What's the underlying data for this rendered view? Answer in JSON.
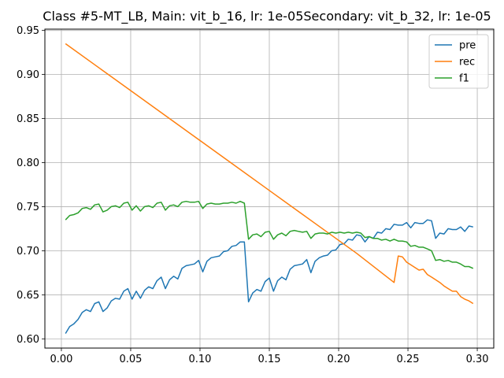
{
  "chart_data": {
    "type": "line",
    "title": "Class #5-MT_LB, Main: vit_b_16, lr: 1e-05Secondary: vit_b_32, lr: 1e-05",
    "xlabel": "",
    "ylabel": "",
    "xlim": [
      -0.0119,
      0.3119
    ],
    "ylim": [
      0.5895,
      0.9515
    ],
    "xticks": [
      "0.00",
      "0.05",
      "0.10",
      "0.15",
      "0.20",
      "0.25",
      "0.30"
    ],
    "xtick_values": [
      0.0,
      0.05,
      0.1,
      0.15,
      0.2,
      0.25,
      0.3
    ],
    "yticks": [
      "0.60",
      "0.65",
      "0.70",
      "0.75",
      "0.80",
      "0.85",
      "0.90",
      "0.95"
    ],
    "ytick_values": [
      0.6,
      0.65,
      0.7,
      0.75,
      0.8,
      0.85,
      0.9,
      0.95
    ],
    "grid": true,
    "legend_position": "top-right",
    "series": [
      {
        "name": "pre",
        "color": "#1f77b4",
        "x": [
          0.003,
          0.006,
          0.009,
          0.012,
          0.015,
          0.018,
          0.021,
          0.024,
          0.027,
          0.03,
          0.033,
          0.036,
          0.039,
          0.042,
          0.045,
          0.048,
          0.051,
          0.054,
          0.057,
          0.06,
          0.063,
          0.066,
          0.069,
          0.072,
          0.075,
          0.078,
          0.081,
          0.084,
          0.087,
          0.09,
          0.093,
          0.096,
          0.099,
          0.102,
          0.105,
          0.108,
          0.111,
          0.114,
          0.117,
          0.12,
          0.123,
          0.126,
          0.129,
          0.132,
          0.135,
          0.138,
          0.141,
          0.144,
          0.147,
          0.15,
          0.153,
          0.156,
          0.159,
          0.162,
          0.165,
          0.168,
          0.171,
          0.174,
          0.177,
          0.18,
          0.183,
          0.186,
          0.189,
          0.192,
          0.195,
          0.198,
          0.201,
          0.204,
          0.207,
          0.21,
          0.213,
          0.216,
          0.219,
          0.222,
          0.225,
          0.228,
          0.231,
          0.234,
          0.237,
          0.24,
          0.243,
          0.246,
          0.249,
          0.252,
          0.255,
          0.258,
          0.261,
          0.264,
          0.267,
          0.27,
          0.273,
          0.276,
          0.279,
          0.282,
          0.285,
          0.288,
          0.291,
          0.294,
          0.297
        ],
        "y": [
          0.606,
          0.614,
          0.617,
          0.622,
          0.63,
          0.633,
          0.631,
          0.64,
          0.642,
          0.631,
          0.635,
          0.643,
          0.646,
          0.645,
          0.654,
          0.657,
          0.645,
          0.654,
          0.646,
          0.655,
          0.659,
          0.657,
          0.666,
          0.67,
          0.657,
          0.667,
          0.671,
          0.668,
          0.68,
          0.683,
          0.684,
          0.685,
          0.689,
          0.676,
          0.688,
          0.692,
          0.693,
          0.694,
          0.699,
          0.7,
          0.705,
          0.706,
          0.71,
          0.71,
          0.642,
          0.652,
          0.656,
          0.654,
          0.665,
          0.669,
          0.654,
          0.666,
          0.67,
          0.667,
          0.679,
          0.683,
          0.684,
          0.685,
          0.69,
          0.675,
          0.688,
          0.692,
          0.694,
          0.695,
          0.7,
          0.701,
          0.707,
          0.708,
          0.713,
          0.712,
          0.718,
          0.717,
          0.71,
          0.716,
          0.714,
          0.721,
          0.72,
          0.725,
          0.724,
          0.73,
          0.729,
          0.729,
          0.732,
          0.726,
          0.732,
          0.731,
          0.731,
          0.735,
          0.734,
          0.714,
          0.72,
          0.719,
          0.725,
          0.724,
          0.724,
          0.727,
          0.722,
          0.728,
          0.727
        ]
      },
      {
        "name": "rec",
        "color": "#ff7f0e",
        "x": [
          0.003,
          0.033,
          0.063,
          0.093,
          0.123,
          0.153,
          0.183,
          0.213,
          0.24,
          0.243,
          0.246,
          0.249,
          0.252,
          0.255,
          0.258,
          0.261,
          0.264,
          0.267,
          0.27,
          0.273,
          0.276,
          0.279,
          0.282,
          0.285,
          0.288,
          0.291,
          0.294,
          0.297
        ],
        "y": [
          0.935,
          0.901,
          0.867,
          0.833,
          0.799,
          0.765,
          0.731,
          0.697,
          0.664,
          0.694,
          0.693,
          0.687,
          0.684,
          0.681,
          0.678,
          0.679,
          0.673,
          0.67,
          0.667,
          0.664,
          0.66,
          0.657,
          0.654,
          0.654,
          0.648,
          0.645,
          0.643,
          0.64
        ]
      },
      {
        "name": "f1",
        "color": "#2ca02c",
        "x": [
          0.003,
          0.006,
          0.009,
          0.012,
          0.015,
          0.018,
          0.021,
          0.024,
          0.027,
          0.03,
          0.033,
          0.036,
          0.039,
          0.042,
          0.045,
          0.048,
          0.051,
          0.054,
          0.057,
          0.06,
          0.063,
          0.066,
          0.069,
          0.072,
          0.075,
          0.078,
          0.081,
          0.084,
          0.087,
          0.09,
          0.093,
          0.096,
          0.099,
          0.102,
          0.105,
          0.108,
          0.111,
          0.114,
          0.117,
          0.12,
          0.123,
          0.126,
          0.129,
          0.132,
          0.135,
          0.138,
          0.141,
          0.144,
          0.147,
          0.15,
          0.153,
          0.156,
          0.159,
          0.162,
          0.165,
          0.168,
          0.171,
          0.174,
          0.177,
          0.18,
          0.183,
          0.186,
          0.189,
          0.192,
          0.195,
          0.198,
          0.201,
          0.204,
          0.207,
          0.21,
          0.213,
          0.216,
          0.219,
          0.222,
          0.225,
          0.228,
          0.231,
          0.234,
          0.237,
          0.24,
          0.243,
          0.246,
          0.249,
          0.252,
          0.255,
          0.258,
          0.261,
          0.264,
          0.267,
          0.27,
          0.273,
          0.276,
          0.279,
          0.282,
          0.285,
          0.288,
          0.291,
          0.294,
          0.297
        ],
        "y": [
          0.735,
          0.74,
          0.741,
          0.743,
          0.748,
          0.749,
          0.747,
          0.752,
          0.753,
          0.744,
          0.746,
          0.75,
          0.751,
          0.749,
          0.754,
          0.755,
          0.746,
          0.751,
          0.745,
          0.75,
          0.751,
          0.749,
          0.754,
          0.755,
          0.746,
          0.751,
          0.752,
          0.75,
          0.755,
          0.756,
          0.755,
          0.755,
          0.756,
          0.748,
          0.753,
          0.754,
          0.753,
          0.753,
          0.754,
          0.754,
          0.755,
          0.754,
          0.756,
          0.754,
          0.713,
          0.718,
          0.719,
          0.716,
          0.721,
          0.722,
          0.713,
          0.718,
          0.72,
          0.717,
          0.722,
          0.723,
          0.722,
          0.721,
          0.722,
          0.714,
          0.719,
          0.72,
          0.72,
          0.719,
          0.721,
          0.72,
          0.721,
          0.72,
          0.721,
          0.72,
          0.721,
          0.72,
          0.715,
          0.716,
          0.714,
          0.714,
          0.712,
          0.713,
          0.711,
          0.713,
          0.711,
          0.711,
          0.71,
          0.705,
          0.706,
          0.704,
          0.704,
          0.702,
          0.7,
          0.689,
          0.69,
          0.688,
          0.689,
          0.687,
          0.687,
          0.685,
          0.682,
          0.682,
          0.68
        ]
      }
    ]
  }
}
